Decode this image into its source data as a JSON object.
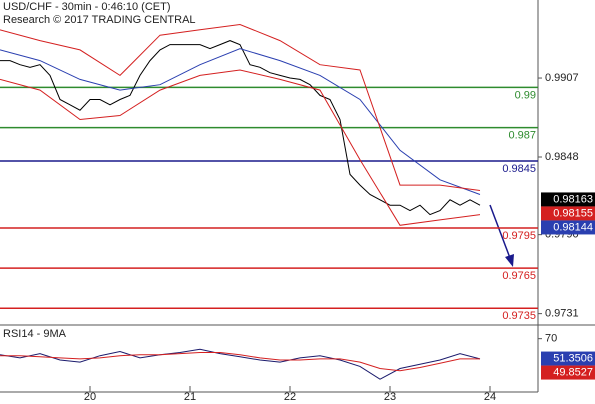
{
  "chart_data": [
    {
      "type": "line",
      "title": "USD/CHF - 30min - 0:46:10 (CET)",
      "subtitle": "Research © 2017 TRADING CENTRAL",
      "xlim": [
        19.1,
        24.48
      ],
      "xticks": [
        20,
        21,
        22,
        23,
        24
      ],
      "ylim": [
        0.97225,
        0.99653
      ],
      "yticks": [
        0.9907,
        0.9848,
        {
          "value": 0.979,
          "label": "0.9790"
        },
        0.9731
      ],
      "levels": [
        {
          "value": 0.99,
          "color": "#2e8b2e"
        },
        {
          "value": 0.987,
          "color": "#2e8b2e"
        },
        {
          "value": 0.9845,
          "color": "#1a1a8c"
        },
        {
          "value": 0.9795,
          "color": "#d42020"
        },
        {
          "value": 0.9765,
          "color": "#d42020"
        },
        {
          "value": 0.9735,
          "color": "#d42020"
        }
      ],
      "price_tags": [
        {
          "value": 0.98163,
          "color": "#000000"
        },
        {
          "value": 0.98155,
          "color": "#d42020"
        },
        {
          "value": 0.98144,
          "color": "#2a3fb0"
        }
      ],
      "series": [
        {
          "color": "#000000",
          "x": [
            19.1,
            19.2,
            19.3,
            19.4,
            19.5,
            19.6,
            19.7,
            19.8,
            19.9,
            20.0,
            20.1,
            20.2,
            20.3,
            20.4,
            20.5,
            20.6,
            20.7,
            20.8,
            20.9,
            21.0,
            21.1,
            21.2,
            21.3,
            21.4,
            21.5,
            21.6,
            21.7,
            21.8,
            21.9,
            22.0,
            22.1,
            22.2,
            22.3,
            22.4,
            22.5,
            22.6,
            22.7,
            22.8,
            22.9,
            23.0,
            23.1,
            23.2,
            23.3,
            23.4,
            23.5,
            23.6,
            23.7,
            23.8,
            23.9
          ],
          "values": [
            0.992,
            0.992,
            0.9917,
            0.9915,
            0.9917,
            0.9909,
            0.9891,
            0.9887,
            0.9883,
            0.9891,
            0.9891,
            0.9887,
            0.9891,
            0.9894,
            0.9909,
            0.992,
            0.9928,
            0.9932,
            0.9932,
            0.9932,
            0.9932,
            0.9929,
            0.9932,
            0.9935,
            0.9932,
            0.9917,
            0.9915,
            0.9911,
            0.9909,
            0.9907,
            0.9906,
            0.9902,
            0.9894,
            0.9891,
            0.9876,
            0.9835,
            0.9827,
            0.982,
            0.9816,
            0.9812,
            0.9812,
            0.9808,
            0.9812,
            0.9805,
            0.9808,
            0.9816,
            0.9812,
            0.9816,
            0.9812
          ]
        },
        {
          "color": "#2a3fb0",
          "x": [
            19.1,
            19.5,
            19.9,
            20.3,
            20.7,
            21.1,
            21.5,
            21.9,
            22.3,
            22.7,
            23.1,
            23.5,
            23.9
          ],
          "values": [
            0.9928,
            0.992,
            0.9906,
            0.9898,
            0.9902,
            0.9917,
            0.9929,
            0.992,
            0.9909,
            0.9891,
            0.9853,
            0.9831,
            0.982
          ]
        },
        {
          "color": "#d42020",
          "x": [
            19.1,
            19.5,
            19.9,
            20.3,
            20.7,
            21.1,
            21.5,
            21.9,
            22.3,
            22.7,
            23.1,
            23.5,
            23.9
          ],
          "values": [
            0.9943,
            0.9935,
            0.9928,
            0.9909,
            0.9939,
            0.9943,
            0.9947,
            0.9935,
            0.9917,
            0.9913,
            0.9827,
            0.9827,
            0.9823
          ]
        },
        {
          "color": "#d42020",
          "x": [
            19.1,
            19.5,
            19.9,
            20.3,
            20.7,
            21.1,
            21.5,
            21.9,
            22.3,
            22.7,
            23.1,
            23.5,
            23.9
          ],
          "values": [
            0.9906,
            0.9898,
            0.9876,
            0.9879,
            0.9898,
            0.9909,
            0.9913,
            0.9906,
            0.9898,
            0.9846,
            0.9797,
            0.9801,
            0.9805
          ]
        }
      ]
    },
    {
      "type": "line",
      "title": "RSI14 - 9MA",
      "ylim": [
        20,
        80
      ],
      "yticks": [
        70
      ],
      "price_tags": [
        {
          "value": 51.3506,
          "color": "#2a3fb0"
        },
        {
          "value": 49.8527,
          "color": "#d42020"
        }
      ],
      "series": [
        {
          "color": "#1a1a6c",
          "x": [
            19.1,
            19.3,
            19.5,
            19.7,
            19.9,
            20.1,
            20.3,
            20.5,
            20.7,
            20.9,
            21.1,
            21.3,
            21.5,
            21.7,
            21.9,
            22.1,
            22.3,
            22.5,
            22.7,
            22.9,
            23.1,
            23.3,
            23.5,
            23.7,
            23.9
          ],
          "values": [
            55,
            52,
            56,
            50,
            48,
            54,
            58,
            52,
            55,
            57,
            60,
            56,
            53,
            50,
            48,
            52,
            54,
            50,
            44,
            32,
            42,
            46,
            50,
            56,
            51
          ]
        },
        {
          "color": "#d42020",
          "x": [
            19.1,
            19.3,
            19.5,
            19.7,
            19.9,
            20.1,
            20.3,
            20.5,
            20.7,
            20.9,
            21.1,
            21.3,
            21.5,
            21.7,
            21.9,
            22.1,
            22.3,
            22.5,
            22.7,
            22.9,
            23.1,
            23.3,
            23.5,
            23.7,
            23.9
          ],
          "values": [
            54,
            54,
            53,
            52,
            51,
            52,
            54,
            55,
            55,
            56,
            57,
            57,
            55,
            52,
            50,
            50,
            51,
            51,
            48,
            42,
            40,
            43,
            47,
            51,
            51
          ]
        }
      ]
    }
  ]
}
